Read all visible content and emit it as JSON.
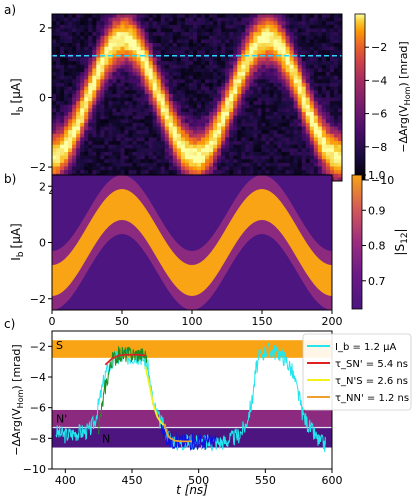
{
  "chart_data": [
    {
      "panel_label": "a)",
      "type": "heatmap",
      "title": "",
      "xlabel": "",
      "ylabel_main": "I",
      "ylabel_sub": "b",
      "ylabel_unit": "[μA]",
      "xlim": [
        395,
        597
      ],
      "ylim": [
        -2.4,
        2.4
      ],
      "xticks": [
        400,
        450,
        500,
        550
      ],
      "yticks": [
        -2,
        0,
        2
      ],
      "colormap": "inferno",
      "colorbar": {
        "label": "−ΔArg(V",
        "label_sub": "Hom",
        "label_end": ") [mrad]",
        "range": [
          -10,
          0
        ],
        "ticks": [
          -2,
          -4,
          -6,
          -8,
          -10
        ]
      },
      "pattern": {
        "center": 0,
        "amplitude": 1.7,
        "period": 100,
        "phase_x": 445,
        "band_halfwidth": 0.75,
        "peak_value": 0,
        "background_value": -9
      },
      "cursor_line": {
        "y": 1.2,
        "color": "#2ad4ff",
        "style": "dashed"
      }
    },
    {
      "panel_label": "b)",
      "type": "heatmap",
      "title": "",
      "xlabel": "",
      "ylabel_main": "I",
      "ylabel_sub": "b",
      "ylabel_unit": "[μA]",
      "xlim": [
        0,
        200
      ],
      "ylim": [
        -2.4,
        2.4
      ],
      "xticks": [
        0,
        50,
        100,
        150,
        200
      ],
      "yticks": [
        -2,
        0,
        2
      ],
      "colormap": "plasma",
      "colorbar": {
        "label": "|S",
        "label_sub": "12",
        "label_end": "|",
        "range": [
          0.62,
          1.0
        ],
        "ticks": [
          1.0,
          0.9,
          0.8,
          0.7
        ]
      },
      "pattern": {
        "center": 0,
        "amplitude": 1.35,
        "period": 100,
        "phase_x": 50,
        "inner_halfwidth": 0.55,
        "outer_halfwidth": 1.05
      },
      "band_values": [
        1.0,
        0.78,
        0.63
      ],
      "band_colors": [
        "#f8a414",
        "#8c2a80",
        "#4c1580"
      ]
    },
    {
      "panel_label": "c)",
      "type": "line",
      "title": "",
      "xlabel": "t [ns]",
      "ylabel": "−ΔArg(V",
      "ylabel_sub": "Hom",
      "ylabel_end": ") [mrad]",
      "xlim": [
        390,
        600
      ],
      "ylim": [
        -10,
        -1
      ],
      "xticks": [
        400,
        450,
        500,
        550,
        600
      ],
      "yticks": [
        -2,
        -4,
        -6,
        -8,
        -10
      ],
      "bands": [
        {
          "label": "S",
          "ymin": -2.75,
          "ymax": -1.6,
          "color": "#f8a414"
        },
        {
          "label": "N'",
          "ymin": -7.25,
          "ymax": -6.15,
          "color": "#8c2a80"
        },
        {
          "label": "N",
          "ymin": -8.6,
          "ymax": -7.25,
          "color": "#4c1580"
        }
      ],
      "hline": {
        "y": -7.3,
        "color": "#ffffff"
      },
      "series": [
        {
          "name": "I_b = 1.2 μA",
          "color": "#22e6ee",
          "x": [
            393,
            400,
            410,
            418,
            422,
            425,
            430,
            437,
            455,
            458,
            462,
            466,
            470,
            474,
            478,
            484,
            493,
            500,
            510,
            520,
            530,
            535,
            540,
            543,
            546,
            550,
            555,
            560,
            565,
            570,
            575,
            578,
            582,
            585,
            590,
            595
          ],
          "y": [
            -7.6,
            -7.8,
            -7.6,
            -7.5,
            -6.9,
            -5.8,
            -3.8,
            -2.8,
            -2.6,
            -2.7,
            -3.4,
            -5.8,
            -6.7,
            -7.3,
            -7.9,
            -8.3,
            -8.2,
            -8.2,
            -8.3,
            -8.2,
            -7.8,
            -7.2,
            -5.6,
            -3.5,
            -2.6,
            -2.3,
            -2.3,
            -2.4,
            -2.8,
            -3.6,
            -5.2,
            -6.4,
            -7.1,
            -7.5,
            -8.2,
            -8.4
          ]
        },
        {
          "name": "τ_SN' = 5.4 ns",
          "color": "#e02020",
          "style": "fit",
          "x": [
            430,
            435,
            440,
            445,
            450,
            455,
            460
          ],
          "y": [
            -3.2,
            -2.8,
            -2.6,
            -2.55,
            -2.55,
            -2.55,
            -2.6
          ]
        },
        {
          "name": "τ_N'S = 2.6 ns",
          "color": "#f2f21a",
          "style": "fit",
          "x": [
            460,
            463,
            466,
            469,
            472,
            475
          ],
          "y": [
            -3.3,
            -4.5,
            -5.8,
            -6.6,
            -7.0,
            -7.2
          ]
        },
        {
          "name": "τ_NN' = 1.2 ns",
          "color": "#f0a030",
          "style": "fit",
          "x": [
            474,
            476,
            478,
            482,
            487,
            495
          ],
          "y": [
            -7.1,
            -7.6,
            -7.95,
            -8.15,
            -8.2,
            -8.2
          ]
        }
      ],
      "segments": [
        {
          "color": "#1e8c1e",
          "x": [
            425,
            430,
            435,
            440,
            445,
            450,
            455,
            461
          ],
          "y": [
            -7.3,
            -4.6,
            -2.9,
            -2.55,
            -2.5,
            -2.55,
            -2.5,
            -2.6
          ]
        },
        {
          "color": "#1010e0",
          "x": [
            472,
            475,
            478,
            485,
            495,
            505,
            513
          ],
          "y": [
            -7.3,
            -7.8,
            -8.1,
            -8.2,
            -8.2,
            -8.25,
            -8.2
          ]
        }
      ]
    }
  ]
}
